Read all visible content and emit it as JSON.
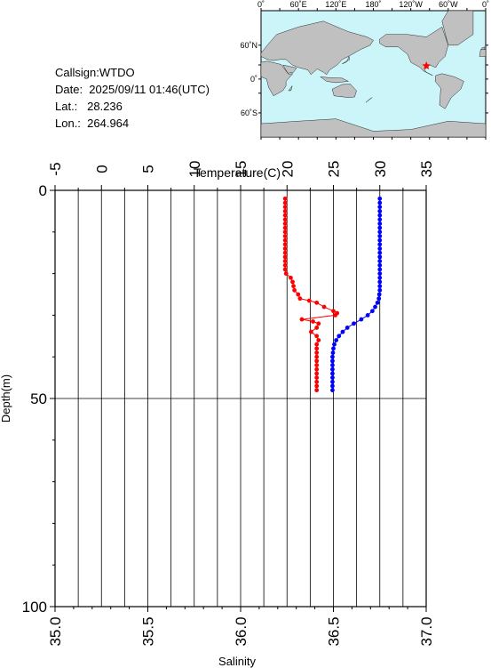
{
  "station": {
    "callsign_line": "Callsign:WTDO",
    "date_line": "Date:  2025/09/11 01:46(UTC)",
    "lat_line": "Lat.:   28.236",
    "lon_line": "Lon.:  264.964"
  },
  "map": {
    "top_lon_labels": [
      "0˚",
      "60˚E",
      "120˚E",
      "180˚",
      "120˚W",
      "60˚W",
      "0˚"
    ],
    "lat_labels": [
      "60˚N",
      "0˚",
      "60˚S"
    ],
    "marker": {
      "lon": 264.964,
      "lat": 28.236
    },
    "colors": {
      "ocean": "#ccf5fa",
      "land": "#c0c0c0",
      "marker": "#ff0000"
    }
  },
  "chart_data": {
    "type": "line",
    "top_axis": {
      "label": "Temperature(C)",
      "range": [
        -5,
        35
      ],
      "ticks": [
        "-5",
        "0",
        "5",
        "10",
        "15",
        "20",
        "25",
        "30",
        "35"
      ]
    },
    "bottom_axis": {
      "label": "Salinity",
      "range": [
        35.0,
        37.0
      ],
      "ticks": [
        "35.0",
        "35.5",
        "36.0",
        "36.5",
        "37.0"
      ]
    },
    "y_axis": {
      "label": "Depth(m)",
      "range": [
        0,
        100
      ],
      "inverted": true,
      "ticks": [
        "0",
        "50",
        "100"
      ]
    },
    "grid": true,
    "series": [
      {
        "axis": "salinity",
        "color": "#ff0000",
        "points": [
          [
            36.24,
            2
          ],
          [
            36.24,
            3
          ],
          [
            36.24,
            4
          ],
          [
            36.24,
            5
          ],
          [
            36.24,
            6
          ],
          [
            36.24,
            7
          ],
          [
            36.24,
            8
          ],
          [
            36.24,
            9
          ],
          [
            36.24,
            10
          ],
          [
            36.24,
            11
          ],
          [
            36.24,
            12
          ],
          [
            36.24,
            13
          ],
          [
            36.24,
            14
          ],
          [
            36.24,
            15
          ],
          [
            36.24,
            16
          ],
          [
            36.24,
            17
          ],
          [
            36.24,
            18
          ],
          [
            36.24,
            19
          ],
          [
            36.245,
            20
          ],
          [
            36.27,
            21
          ],
          [
            36.28,
            22
          ],
          [
            36.285,
            23
          ],
          [
            36.29,
            24
          ],
          [
            36.31,
            25
          ],
          [
            36.32,
            26
          ],
          [
            36.37,
            26.5
          ],
          [
            36.41,
            27
          ],
          [
            36.45,
            28
          ],
          [
            36.5,
            29
          ],
          [
            36.52,
            29.5
          ],
          [
            36.51,
            30
          ],
          [
            36.33,
            31
          ],
          [
            36.39,
            31.5
          ],
          [
            36.42,
            32
          ],
          [
            36.41,
            33
          ],
          [
            36.38,
            34
          ],
          [
            36.41,
            35
          ],
          [
            36.42,
            36
          ],
          [
            36.41,
            37
          ],
          [
            36.41,
            38
          ],
          [
            36.41,
            39
          ],
          [
            36.41,
            40
          ],
          [
            36.41,
            41
          ],
          [
            36.41,
            42
          ],
          [
            36.41,
            43
          ],
          [
            36.41,
            44
          ],
          [
            36.41,
            45
          ],
          [
            36.41,
            46
          ],
          [
            36.41,
            47
          ],
          [
            36.41,
            48
          ]
        ]
      },
      {
        "axis": "temperature",
        "color": "#0000ff",
        "points": [
          [
            30.0,
            2
          ],
          [
            30.0,
            3
          ],
          [
            30.0,
            4
          ],
          [
            30.0,
            5
          ],
          [
            30.0,
            6
          ],
          [
            30.0,
            7
          ],
          [
            30.0,
            8
          ],
          [
            30.0,
            9
          ],
          [
            30.0,
            10
          ],
          [
            30.0,
            11
          ],
          [
            30.0,
            12
          ],
          [
            30.0,
            13
          ],
          [
            30.0,
            14
          ],
          [
            30.0,
            15
          ],
          [
            30.0,
            16
          ],
          [
            30.0,
            17
          ],
          [
            30.0,
            18
          ],
          [
            30.0,
            19
          ],
          [
            30.0,
            20
          ],
          [
            30.0,
            21
          ],
          [
            30.0,
            22
          ],
          [
            30.0,
            23
          ],
          [
            30.0,
            24
          ],
          [
            29.95,
            25
          ],
          [
            29.9,
            26
          ],
          [
            29.75,
            27
          ],
          [
            29.5,
            28
          ],
          [
            29.2,
            29
          ],
          [
            28.7,
            30
          ],
          [
            28.0,
            31
          ],
          [
            27.2,
            32
          ],
          [
            26.5,
            33
          ],
          [
            26.0,
            34
          ],
          [
            25.6,
            35
          ],
          [
            25.3,
            36
          ],
          [
            25.1,
            37
          ],
          [
            25.0,
            38
          ],
          [
            24.95,
            39
          ],
          [
            24.9,
            40
          ],
          [
            24.9,
            41
          ],
          [
            24.9,
            42
          ],
          [
            24.9,
            43
          ],
          [
            24.9,
            44
          ],
          [
            24.9,
            45
          ],
          [
            24.9,
            46
          ],
          [
            24.9,
            47
          ],
          [
            24.9,
            48
          ]
        ]
      }
    ]
  }
}
